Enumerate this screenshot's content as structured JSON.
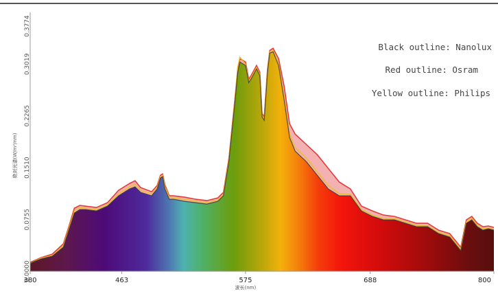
{
  "chart_data": {
    "type": "area",
    "xlabel": "波长(nm)",
    "ylabel": "绝对光谱(W/m²/nm)",
    "xlim": [
      380,
      800
    ],
    "ylim": [
      0,
      0.3774
    ],
    "x_ticks": [
      "380",
      "463",
      "575",
      "688",
      "800"
    ],
    "y_ticks": [
      "0.0000",
      "0.0755",
      "0.1510",
      "0.2265",
      "0.3019",
      "0.3774"
    ],
    "grid": false,
    "legend_position": "top-right",
    "legend": [
      "Black outline: Nanolux",
      "Red outline: Osram",
      "Yellow outline: Philips"
    ],
    "series": [
      {
        "name": "Nanolux",
        "color": "#3a3a3a",
        "x": [
          380,
          390,
          400,
          410,
          415,
          420,
          425,
          430,
          440,
          450,
          460,
          470,
          475,
          480,
          490,
          495,
          498,
          500,
          502,
          506,
          510,
          520,
          530,
          540,
          550,
          555,
          560,
          565,
          568,
          570,
          575,
          578,
          580,
          585,
          588,
          590,
          592,
          595,
          597,
          600,
          605,
          610,
          615,
          620,
          630,
          640,
          650,
          660,
          670,
          680,
          690,
          700,
          710,
          720,
          730,
          740,
          750,
          760,
          765,
          770,
          775,
          780,
          785,
          790,
          795,
          800
        ],
        "y": [
          0.012,
          0.018,
          0.022,
          0.035,
          0.06,
          0.085,
          0.09,
          0.09,
          0.088,
          0.095,
          0.11,
          0.12,
          0.123,
          0.115,
          0.11,
          0.12,
          0.136,
          0.138,
          0.12,
          0.105,
          0.105,
          0.102,
          0.1,
          0.098,
          0.102,
          0.11,
          0.16,
          0.24,
          0.29,
          0.305,
          0.3,
          0.275,
          0.28,
          0.295,
          0.285,
          0.225,
          0.22,
          0.29,
          0.318,
          0.32,
          0.3,
          0.25,
          0.195,
          0.175,
          0.16,
          0.14,
          0.12,
          0.11,
          0.11,
          0.088,
          0.08,
          0.075,
          0.075,
          0.07,
          0.065,
          0.065,
          0.055,
          0.05,
          0.04,
          0.03,
          0.07,
          0.075,
          0.065,
          0.06,
          0.062,
          0.06
        ]
      },
      {
        "name": "Osram",
        "color": "#e02020",
        "x": [
          380,
          390,
          400,
          410,
          415,
          420,
          425,
          430,
          440,
          450,
          460,
          470,
          475,
          480,
          490,
          495,
          498,
          500,
          502,
          506,
          510,
          520,
          530,
          540,
          550,
          555,
          560,
          565,
          568,
          570,
          575,
          578,
          580,
          585,
          588,
          590,
          592,
          595,
          597,
          600,
          605,
          610,
          615,
          620,
          630,
          640,
          650,
          660,
          670,
          680,
          690,
          700,
          710,
          720,
          730,
          740,
          750,
          760,
          765,
          770,
          775,
          780,
          785,
          790,
          795,
          800
        ],
        "y": [
          0.013,
          0.02,
          0.025,
          0.04,
          0.065,
          0.092,
          0.096,
          0.095,
          0.093,
          0.1,
          0.118,
          0.128,
          0.132,
          0.122,
          0.116,
          0.125,
          0.14,
          0.142,
          0.126,
          0.11,
          0.11,
          0.108,
          0.105,
          0.103,
          0.107,
          0.115,
          0.165,
          0.245,
          0.295,
          0.31,
          0.305,
          0.28,
          0.285,
          0.3,
          0.29,
          0.23,
          0.225,
          0.295,
          0.322,
          0.325,
          0.31,
          0.27,
          0.215,
          0.2,
          0.185,
          0.17,
          0.15,
          0.13,
          0.12,
          0.095,
          0.088,
          0.082,
          0.08,
          0.075,
          0.07,
          0.07,
          0.06,
          0.055,
          0.045,
          0.035,
          0.075,
          0.08,
          0.07,
          0.065,
          0.066,
          0.064
        ]
      },
      {
        "name": "Philips",
        "color": "#e8c020",
        "x": [
          380,
          390,
          400,
          410,
          415,
          420,
          425,
          430,
          440,
          450,
          460,
          470,
          475,
          480,
          490,
          495,
          498,
          500,
          502,
          506,
          510,
          520,
          530,
          540,
          550,
          555,
          560,
          565,
          568,
          570,
          575,
          578,
          580,
          585,
          588,
          590,
          592,
          595,
          597,
          600,
          605,
          610,
          615,
          620,
          630,
          640,
          650,
          660,
          670,
          680,
          690,
          700,
          710,
          720,
          730,
          740,
          750,
          760,
          765,
          770,
          775,
          780,
          785,
          790,
          795,
          800
        ],
        "y": [
          0.012,
          0.019,
          0.023,
          0.037,
          0.062,
          0.088,
          0.093,
          0.092,
          0.09,
          0.097,
          0.113,
          0.123,
          0.127,
          0.118,
          0.113,
          0.122,
          0.138,
          0.14,
          0.123,
          0.108,
          0.107,
          0.105,
          0.102,
          0.1,
          0.104,
          0.112,
          0.163,
          0.243,
          0.298,
          0.312,
          0.302,
          0.277,
          0.282,
          0.297,
          0.287,
          0.227,
          0.222,
          0.292,
          0.32,
          0.322,
          0.303,
          0.255,
          0.2,
          0.18,
          0.165,
          0.145,
          0.125,
          0.113,
          0.112,
          0.09,
          0.082,
          0.077,
          0.077,
          0.072,
          0.067,
          0.066,
          0.057,
          0.052,
          0.042,
          0.032,
          0.072,
          0.077,
          0.067,
          0.062,
          0.063,
          0.061
        ]
      }
    ]
  }
}
